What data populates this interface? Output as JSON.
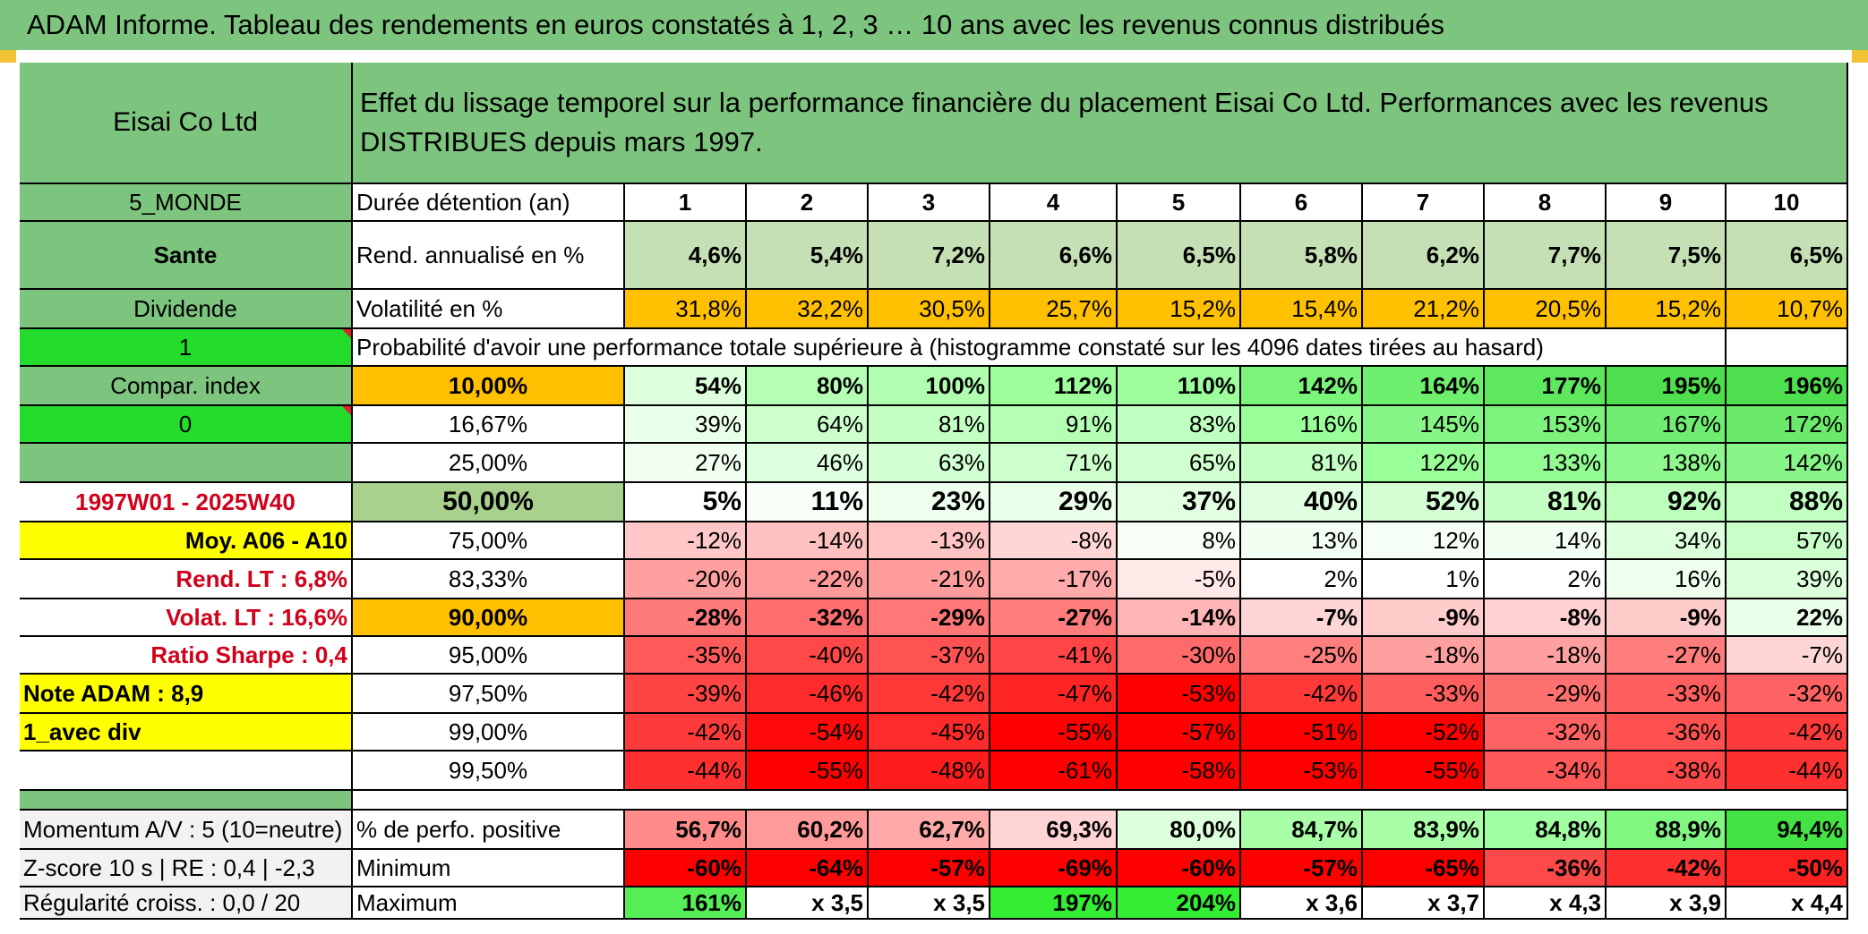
{
  "title": "ADAM Informe. Tableau des rendements en euros constatés à 1, 2, 3 … 10 ans avec les revenus connus distribués",
  "company": "Eisai Co Ltd",
  "header_text": "Effet du lissage temporel sur la performance financière du placement Eisai Co Ltd. Performances avec les revenus DISTRIBUES depuis mars 1997.",
  "left": {
    "region": "5_MONDE",
    "sector": "Sante",
    "type": "Dividende",
    "input1": "1",
    "compar": "Compar. index",
    "input2": "0",
    "period": "1997W01 - 2025W40",
    "moy": "Moy. A06 - A10",
    "rend_lt": "Rend. LT :   6,8%",
    "volat_lt": "Volat. LT :   16,6%",
    "sharpe": "Ratio Sharpe :   0,4",
    "note": "Note ADAM : 8,9",
    "avec_div": "1_avec div",
    "momentum": "Momentum A/V : 5 (10=neutre)",
    "zscore": "Z-score 10 s | RE : 0,4 | -2,3",
    "regularite": "Régularité croiss. : 0,0 / 20"
  },
  "labels": {
    "duree": "Durée détention (an)",
    "rend": "Rend. annualisé en %",
    "vol": "Volatilité en %",
    "proba": "Probabilité d'avoir une performance totale supérieure à (histogramme constaté sur les 4096 dates tirées au hasard)",
    "perf_pos": "% de perfo. positive",
    "minimum": "Minimum",
    "maximum": "Maximum"
  },
  "years": [
    "1",
    "2",
    "3",
    "4",
    "5",
    "6",
    "7",
    "8",
    "9",
    "10"
  ],
  "rend": [
    "4,6%",
    "5,4%",
    "7,2%",
    "6,6%",
    "6,5%",
    "5,8%",
    "6,2%",
    "7,7%",
    "7,5%",
    "6,5%"
  ],
  "vol": [
    "31,8%",
    "32,2%",
    "30,5%",
    "25,7%",
    "15,2%",
    "15,4%",
    "21,2%",
    "20,5%",
    "15,2%",
    "10,7%"
  ],
  "prob_rows": [
    {
      "p": "10,00%",
      "v": [
        "54%",
        "80%",
        "100%",
        "112%",
        "110%",
        "142%",
        "164%",
        "177%",
        "195%",
        "196%"
      ]
    },
    {
      "p": "16,67%",
      "v": [
        "39%",
        "64%",
        "81%",
        "91%",
        "83%",
        "116%",
        "145%",
        "153%",
        "167%",
        "172%"
      ]
    },
    {
      "p": "25,00%",
      "v": [
        "27%",
        "46%",
        "63%",
        "71%",
        "65%",
        "81%",
        "122%",
        "133%",
        "138%",
        "142%"
      ]
    },
    {
      "p": "50,00%",
      "v": [
        "5%",
        "11%",
        "23%",
        "29%",
        "37%",
        "40%",
        "52%",
        "81%",
        "92%",
        "88%"
      ]
    },
    {
      "p": "75,00%",
      "v": [
        "-12%",
        "-14%",
        "-13%",
        "-8%",
        "8%",
        "13%",
        "12%",
        "14%",
        "34%",
        "57%"
      ]
    },
    {
      "p": "83,33%",
      "v": [
        "-20%",
        "-22%",
        "-21%",
        "-17%",
        "-5%",
        "2%",
        "1%",
        "2%",
        "16%",
        "39%"
      ]
    },
    {
      "p": "90,00%",
      "v": [
        "-28%",
        "-32%",
        "-29%",
        "-27%",
        "-14%",
        "-7%",
        "-9%",
        "-8%",
        "-9%",
        "22%"
      ]
    },
    {
      "p": "95,00%",
      "v": [
        "-35%",
        "-40%",
        "-37%",
        "-41%",
        "-30%",
        "-25%",
        "-18%",
        "-18%",
        "-27%",
        "-7%"
      ]
    },
    {
      "p": "97,50%",
      "v": [
        "-39%",
        "-46%",
        "-42%",
        "-47%",
        "-53%",
        "-42%",
        "-33%",
        "-29%",
        "-33%",
        "-32%"
      ]
    },
    {
      "p": "99,00%",
      "v": [
        "-42%",
        "-54%",
        "-45%",
        "-55%",
        "-57%",
        "-51%",
        "-52%",
        "-32%",
        "-36%",
        "-42%"
      ]
    },
    {
      "p": "99,50%",
      "v": [
        "-44%",
        "-55%",
        "-48%",
        "-61%",
        "-58%",
        "-53%",
        "-55%",
        "-34%",
        "-38%",
        "-44%"
      ]
    }
  ],
  "prob_colors": [
    [
      "#dcffdc",
      "#b5ffb5",
      "#b0ffb0",
      "#9cff9c",
      "#9cff9c",
      "#7af57a",
      "#6ef06e",
      "#5ee85e",
      "#4ddf4d",
      "#4ddf4d"
    ],
    [
      "#eaffea",
      "#ccffcc",
      "#c4ffc4",
      "#b5ffb5",
      "#bfffbf",
      "#99ff99",
      "#86f786",
      "#7df27d",
      "#70ec70",
      "#6ae96a"
    ],
    [
      "#f1fff1",
      "#ddffdd",
      "#d2ffd2",
      "#ccffcc",
      "#d0ffd0",
      "#c4ffc4",
      "#99ff99",
      "#92fb92",
      "#8ef88e",
      "#88f588"
    ],
    [
      "#ffffff",
      "#f8fff8",
      "#eeffee",
      "#eaffea",
      "#e2ffe2",
      "#e0ffe0",
      "#d4ffd4",
      "#c4ffc4",
      "#bdffbd",
      "#c0ffc0"
    ],
    [
      "#ffc7c7",
      "#ffc0c0",
      "#ffc3c3",
      "#ffd6d6",
      "#f8fff8",
      "#f4fff4",
      "#f5fff5",
      "#f3fff3",
      "#dcffdc",
      "#c8ffc8"
    ],
    [
      "#ffa0a0",
      "#ff9a9a",
      "#ff9d9d",
      "#ffabab",
      "#ffe8e8",
      "#ffffff",
      "#ffffff",
      "#ffffff",
      "#eeffee",
      "#dbffdb"
    ],
    [
      "#ff7a7a",
      "#ff6e6e",
      "#ff7777",
      "#ff7d7d",
      "#ffb5b5",
      "#ffd6d6",
      "#ffcccc",
      "#ffd0d0",
      "#ffcccc",
      "#eaffea"
    ],
    [
      "#ff5a5a",
      "#ff4848",
      "#ff5252",
      "#ff4545",
      "#ff6b6b",
      "#ff7f7f",
      "#ffa0a0",
      "#ffa0a0",
      "#ff7d7d",
      "#ffd6d6"
    ],
    [
      "#ff4444",
      "#ff2a2a",
      "#ff3838",
      "#ff2424",
      "#ff0000",
      "#ff3838",
      "#ff5e5e",
      "#ff7070",
      "#ff5e5e",
      "#ff6262"
    ],
    [
      "#ff3a3a",
      "#ff0a0a",
      "#ff2a2a",
      "#ff0000",
      "#ff0000",
      "#ff0000",
      "#ff0000",
      "#ff6262",
      "#ff5050",
      "#ff3a3a"
    ],
    [
      "#ff3030",
      "#ff0000",
      "#ff1c1c",
      "#ff0000",
      "#ff0000",
      "#ff0000",
      "#ff0000",
      "#ff5858",
      "#ff4848",
      "#ff3030"
    ]
  ],
  "perf_pos": [
    "56,7%",
    "60,2%",
    "62,7%",
    "69,3%",
    "80,0%",
    "84,7%",
    "83,9%",
    "84,8%",
    "88,9%",
    "94,4%"
  ],
  "perf_pos_colors": [
    "#ff8b8b",
    "#ff9a9a",
    "#ffa9a9",
    "#ffd4d4",
    "#dcffdc",
    "#a8ffa8",
    "#a8ffa8",
    "#a0ffa0",
    "#80f780",
    "#44e344"
  ],
  "minimum": [
    "-60%",
    "-64%",
    "-57%",
    "-69%",
    "-60%",
    "-57%",
    "-65%",
    "-36%",
    "-42%",
    "-50%"
  ],
  "minimum_colors": [
    "#ff0000",
    "#ff0000",
    "#ff0000",
    "#ff0000",
    "#ff0000",
    "#ff0000",
    "#ff0000",
    "#ff4848",
    "#ff3030",
    "#ff2020"
  ],
  "maximum": [
    "161%",
    "x 3,5",
    "x 3,5",
    "197%",
    "204%",
    "x 3,6",
    "x 3,7",
    "x 4,3",
    "x 3,9",
    "x 4,4"
  ],
  "maximum_colors": [
    "#55ee55",
    "#ffffff",
    "#ffffff",
    "#33ee33",
    "#33ee33",
    "#ffffff",
    "#ffffff",
    "#ffffff",
    "#ffffff",
    "#ffffff"
  ]
}
